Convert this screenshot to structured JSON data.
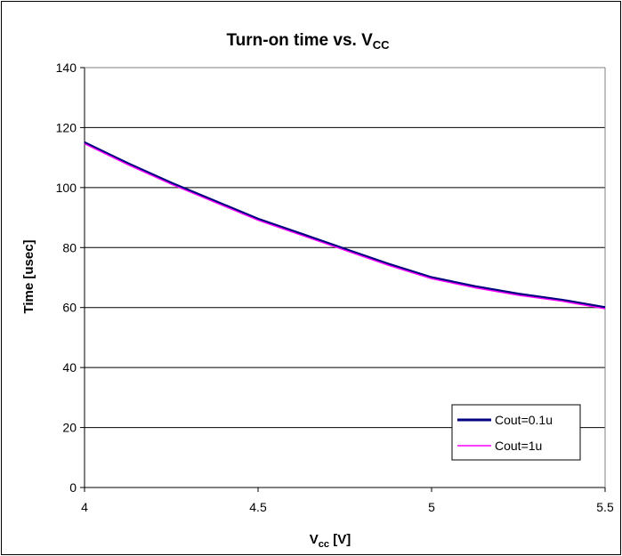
{
  "chart_data": {
    "type": "line",
    "title": {
      "main": "Turn-on time vs. V",
      "sub": "CC"
    },
    "xlabel": {
      "main": "V",
      "sub": "cc",
      "rest": " [V]"
    },
    "ylabel": "Time [usec]",
    "xlim": [
      4,
      5.5
    ],
    "ylim": [
      0,
      140
    ],
    "xticks": [
      "4",
      "4.5",
      "5",
      "5.5"
    ],
    "yticks": [
      "0",
      "20",
      "40",
      "60",
      "80",
      "100",
      "120",
      "140"
    ],
    "grid": "horizontal",
    "legend_position": "bottom-right",
    "series": [
      {
        "name": "Cout=0.1u",
        "color": "#000080",
        "x": [
          4,
          4.125,
          4.25,
          4.375,
          4.5,
          4.625,
          4.75,
          4.875,
          5,
          5.125,
          5.25,
          5.375,
          5.5
        ],
        "y": [
          115,
          108,
          101.5,
          95.5,
          89.5,
          84.5,
          79.5,
          74.5,
          70,
          67,
          64.5,
          62.5,
          60
        ]
      },
      {
        "name": "Cout=1u",
        "color": "#ff00ff",
        "x": [
          4,
          4.125,
          4.25,
          4.375,
          4.5,
          4.625,
          4.75,
          4.875,
          5,
          5.125,
          5.25,
          5.375,
          5.5
        ],
        "y": [
          114.6,
          107.6,
          101.1,
          95.1,
          89.1,
          84.1,
          79.1,
          74.1,
          69.6,
          66.6,
          64.1,
          62.1,
          59.6
        ]
      }
    ]
  }
}
